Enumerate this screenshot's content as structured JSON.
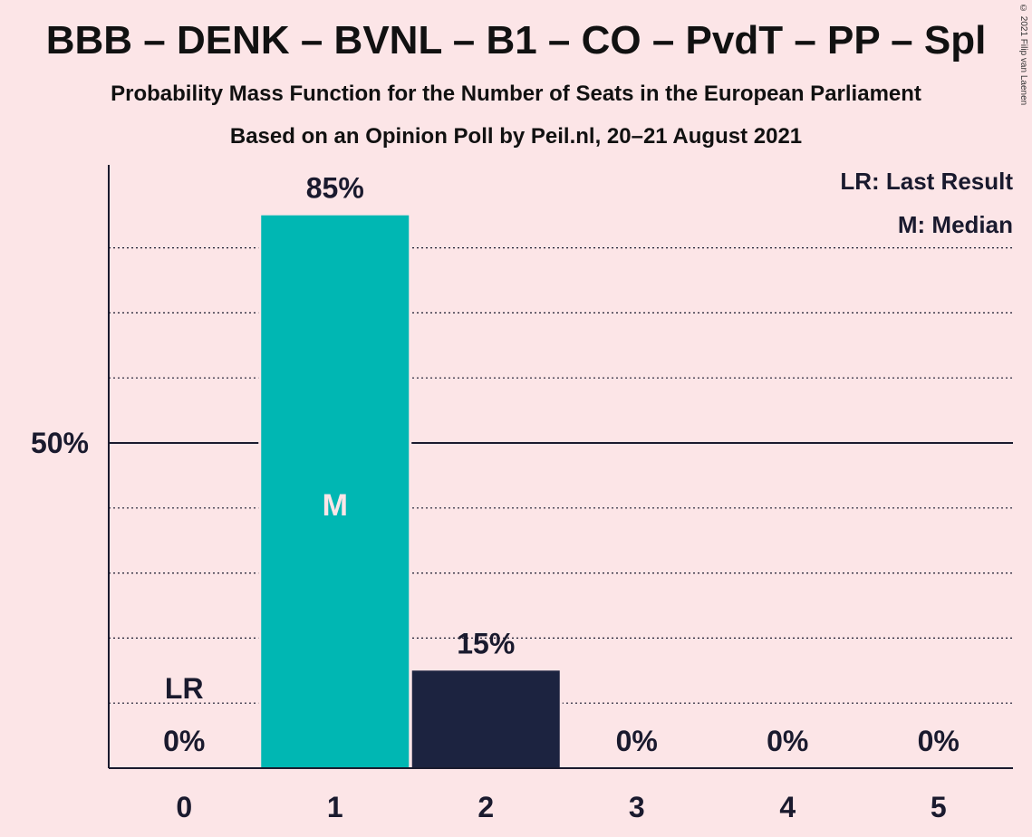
{
  "title": "BBB – DENK – BVNL – B1 – CO – PvdT – PP – Spl",
  "subtitle": "Probability Mass Function for the Number of Seats in the European Parliament",
  "subtitle2": "Based on an Opinion Poll by Peil.nl, 20–21 August 2021",
  "copyright": "© 2021 Filip van Laenen",
  "legend": {
    "lr": "LR: Last Result",
    "median": "M: Median"
  },
  "chart_data": {
    "type": "bar",
    "categories": [
      "0",
      "1",
      "2",
      "3",
      "4",
      "5"
    ],
    "values": [
      0,
      85,
      15,
      0,
      0,
      0
    ],
    "value_labels": [
      "0%",
      "85%",
      "15%",
      "0%",
      "0%",
      "0%"
    ],
    "ylim": [
      0,
      93
    ],
    "y_tick_label": "50%",
    "y_tick_value": 50,
    "gridlines": [
      10,
      20,
      30,
      40,
      60,
      70,
      80
    ],
    "last_result_index": 0,
    "last_result_marker": "LR",
    "median_index": 1,
    "median_marker": "M",
    "colors": {
      "median_bar": "#00b7b3",
      "bar": "#1c2340",
      "axis": "#1a1a2e"
    }
  }
}
